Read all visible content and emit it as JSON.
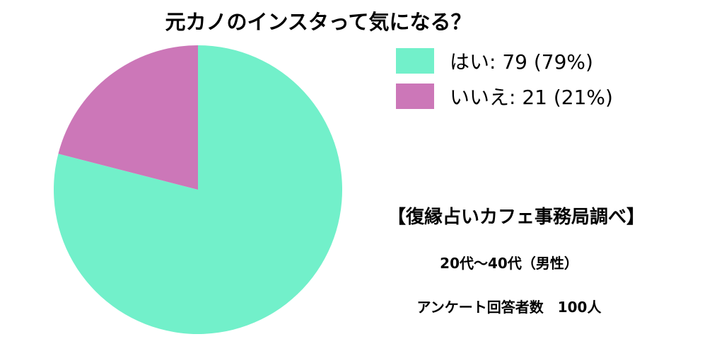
{
  "chart_data": {
    "type": "pie",
    "title": "元カノのインスタって気になる？",
    "slices": [
      {
        "label": "はい: 79 (79%)",
        "value": 79,
        "color": "#72F0CA"
      },
      {
        "label": "いいえ: 21 (21%)",
        "value": 21,
        "color": "#CC77B8"
      }
    ]
  },
  "annotations": {
    "credit": "【復縁占いカフェ事務局調べ】",
    "age_group": "20代〜40代（男性）",
    "respondents": "アンケート回答者数　100人"
  }
}
